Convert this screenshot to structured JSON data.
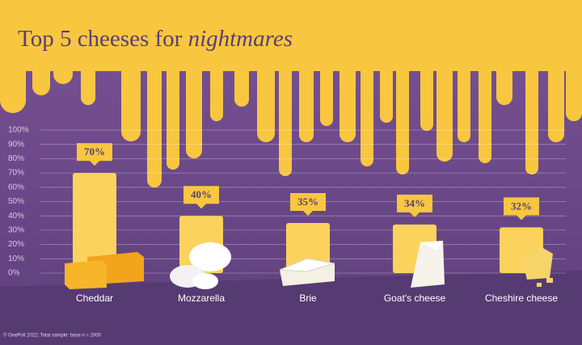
{
  "chart_data": {
    "type": "bar",
    "title": "Top 5 cheeses for",
    "title_emphasis": "nightmares",
    "categories": [
      "Cheddar",
      "Mozzarella",
      "Brie",
      "Goat's cheese",
      "Cheshire cheese"
    ],
    "values": [
      70,
      40,
      35,
      34,
      32
    ],
    "value_labels": [
      "70%",
      "40%",
      "35%",
      "34%",
      "32%"
    ],
    "color": "#fbd35c",
    "ylim": [
      0,
      100
    ],
    "yticks": [
      {
        "value": 0,
        "label": "0%"
      },
      {
        "value": 10,
        "label": "10%"
      },
      {
        "value": 20,
        "label": "20%"
      },
      {
        "value": 30,
        "label": "30%"
      },
      {
        "value": 40,
        "label": "40%"
      },
      {
        "value": 50,
        "label": "50%"
      },
      {
        "value": 60,
        "label": "60%"
      },
      {
        "value": 70,
        "label": "70%"
      },
      {
        "value": 80,
        "label": "80%"
      },
      {
        "value": 90,
        "label": "90%"
      },
      {
        "value": 100,
        "label": "100%"
      }
    ],
    "grid": true,
    "footnote": "© OnePoll 2022; Total sample: base n = 2000"
  }
}
